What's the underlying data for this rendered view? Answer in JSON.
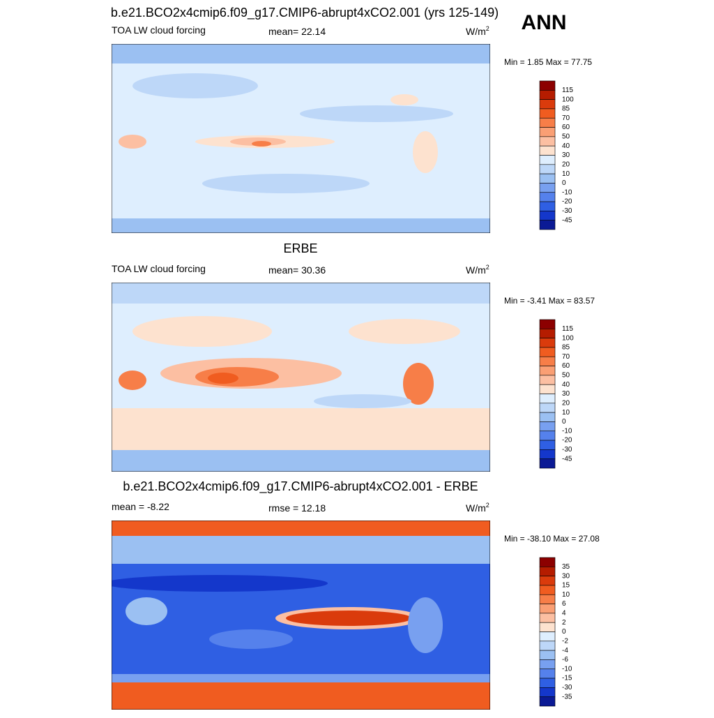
{
  "title": "b.e21.BCO2x4cmip6.f09_g17.CMIP6-abrupt4xCO2.001 (yrs 125-149)",
  "season": "ANN",
  "panels": [
    {
      "left_label": "TOA LW cloud forcing",
      "center_label": "mean=  22.14",
      "units": {
        "base": "W/m",
        "sup": "2"
      },
      "min_max": "Min =   1.85 Max =  77.75",
      "colorbar": {
        "labels": [
          115,
          100,
          85,
          70,
          60,
          50,
          40,
          30,
          20,
          10,
          0,
          -10,
          -20,
          -30,
          -45
        ],
        "colors": [
          "#8c0000",
          "#b51c00",
          "#da3b0c",
          "#f05c20",
          "#f77e48",
          "#fa9f74",
          "#fcbfa2",
          "#fde2cf",
          "#deeefe",
          "#bdd7f8",
          "#9bc0f2",
          "#78a0f0",
          "#5581ec",
          "#2f5fe3",
          "#1437cb",
          "#0b1a95"
        ]
      }
    },
    {
      "title": "ERBE",
      "left_label": "TOA LW cloud forcing",
      "center_label": "mean=  30.36",
      "units": {
        "base": "W/m",
        "sup": "2"
      },
      "min_max": "Min =  -3.41 Max =  83.57",
      "colorbar": {
        "labels": [
          115,
          100,
          85,
          70,
          60,
          50,
          40,
          30,
          20,
          10,
          0,
          -10,
          -20,
          -30,
          -45
        ],
        "colors": [
          "#8c0000",
          "#b51c00",
          "#da3b0c",
          "#f05c20",
          "#f77e48",
          "#fa9f74",
          "#fcbfa2",
          "#fde2cf",
          "#deeefe",
          "#bdd7f8",
          "#9bc0f2",
          "#78a0f0",
          "#5581ec",
          "#2f5fe3",
          "#1437cb",
          "#0b1a95"
        ]
      }
    },
    {
      "title": "b.e21.BCO2x4cmip6.f09_g17.CMIP6-abrupt4xCO2.001 - ERBE",
      "left_label": "mean =  -8.22",
      "center_label": "rmse =  12.18",
      "units": {
        "base": "W/m",
        "sup": "2"
      },
      "min_max": "Min = -38.10 Max =  27.08",
      "colorbar": {
        "labels": [
          35,
          30,
          15,
          10,
          6,
          4,
          2,
          0,
          -2,
          -4,
          -6,
          -10,
          -15,
          -30,
          -35
        ],
        "colors": [
          "#8c0000",
          "#b51c00",
          "#da3b0c",
          "#f05c20",
          "#f77e48",
          "#fa9f74",
          "#fcbfa2",
          "#fde2cf",
          "#deeefe",
          "#bdd7f8",
          "#9bc0f2",
          "#78a0f0",
          "#5581ec",
          "#2f5fe3",
          "#1437cb",
          "#0b1a95"
        ]
      }
    }
  ]
}
